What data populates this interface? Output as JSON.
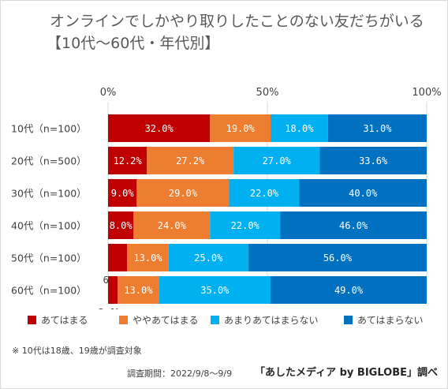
{
  "chart_data": {
    "type": "bar",
    "orientation": "horizontal",
    "stacked": true,
    "percent": true,
    "title": "オンラインでしかやり取りしたことのない友だちがいる",
    "subtitle": "【10代～60代・年代別】",
    "categories": [
      "10代（n=100）",
      "20代（n=500）",
      "30代（n=100）",
      "40代（n=100）",
      "50代（n=100）",
      "60代（n=100）"
    ],
    "series": [
      {
        "name": "あてはまる",
        "color": "#c00000",
        "values": [
          32.0,
          12.2,
          9.0,
          8.0,
          6.0,
          3.0
        ]
      },
      {
        "name": "ややあてはまる",
        "color": "#ed7d31",
        "values": [
          19.0,
          27.2,
          29.0,
          24.0,
          13.0,
          13.0
        ]
      },
      {
        "name": "あまりあてはまらない",
        "color": "#00b0f0",
        "values": [
          18.0,
          27.0,
          22.0,
          22.0,
          25.0,
          35.0
        ]
      },
      {
        "name": "あてはまらない",
        "color": "#0070c0",
        "values": [
          31.0,
          33.6,
          40.0,
          46.0,
          56.0,
          49.0
        ]
      }
    ],
    "xlim": [
      0,
      100
    ],
    "xticks": [
      "0%",
      "50%",
      "100%"
    ],
    "grid": true,
    "legend_position": "bottom"
  },
  "note": "※ 10代は18歳、19歳が調査対象",
  "survey_period": "調査期間：2022/9/8～9/9",
  "source": "「あしたメディア by BIGLOBE」調べ"
}
